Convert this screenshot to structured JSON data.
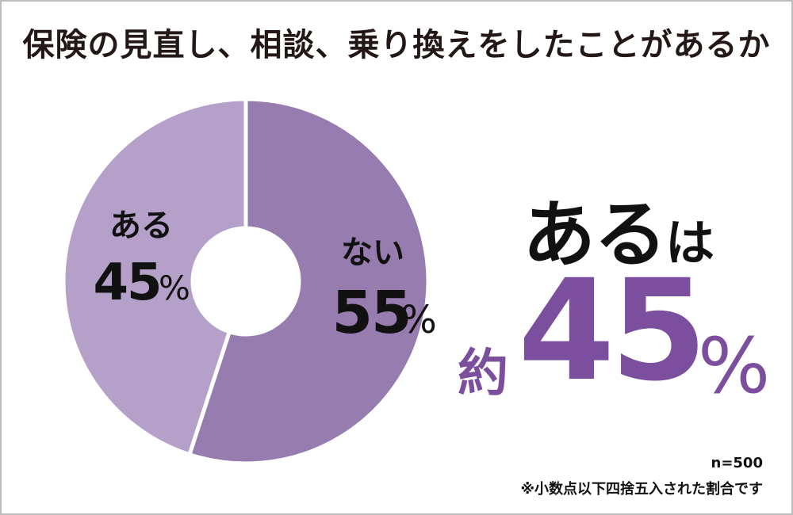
{
  "title": "保険の見直し、相談、乗り換えをしたことがあるか",
  "chart_data": {
    "type": "pie",
    "title": "保険の見直し、相談、乗り換えをしたことがあるか",
    "slices": [
      {
        "label": "ない",
        "value": 55,
        "display": "55",
        "color": "#977caf"
      },
      {
        "label": "ある",
        "value": 45,
        "display": "45",
        "color": "#b4a0c9"
      }
    ],
    "unit": "%",
    "hole": "donut",
    "start_angle_deg": 0,
    "direction": "clockwise"
  },
  "headline": {
    "subject": "ある",
    "particle": "は"
  },
  "result": {
    "approx": "約",
    "value": "45",
    "unit": "%"
  },
  "notes": {
    "sample": "n=500",
    "rounding": "※小数点以下四捨五入された割合です"
  },
  "colors": {
    "accent": "#7b4f9d",
    "text": "#231815",
    "border": "#bdbdbd"
  }
}
